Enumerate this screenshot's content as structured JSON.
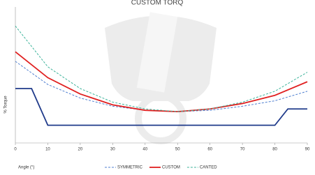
{
  "chart_data": {
    "type": "line",
    "title": "CUSTOM TORQ",
    "x_label": "Angle (°)",
    "y_label": "% Torque",
    "xlim": [
      0,
      90
    ],
    "xticks": [
      0,
      10,
      20,
      30,
      40,
      50,
      60,
      70,
      80,
      90
    ],
    "ylim": [
      0,
      100
    ],
    "series": [
      {
        "name": "SYMMETRIC",
        "color": "#4f7fd0",
        "dash": true,
        "x": [
          0,
          10,
          20,
          30,
          40,
          50,
          60,
          70,
          80,
          90
        ],
        "values": [
          60,
          43,
          33,
          27,
          24,
          23,
          24,
          27,
          31,
          38
        ]
      },
      {
        "name": "CUSTOM",
        "color": "#e02020",
        "dash": false,
        "x": [
          0,
          10,
          20,
          30,
          40,
          50,
          60,
          70,
          80,
          90
        ],
        "values": [
          67,
          48,
          36,
          28,
          24,
          23,
          25,
          29,
          35,
          45
        ]
      },
      {
        "name": "CANTED",
        "color": "#3cb39a",
        "dash": true,
        "x": [
          0,
          10,
          20,
          30,
          40,
          50,
          60,
          70,
          80,
          90
        ],
        "values": [
          86,
          56,
          40,
          30,
          25,
          23,
          25,
          30,
          38,
          52
        ]
      },
      {
        "color": "#1f3a8a",
        "dash": false,
        "x": [
          0,
          5,
          10,
          80,
          84,
          90
        ],
        "values": [
          40,
          40,
          13,
          13,
          25,
          25
        ]
      }
    ]
  }
}
